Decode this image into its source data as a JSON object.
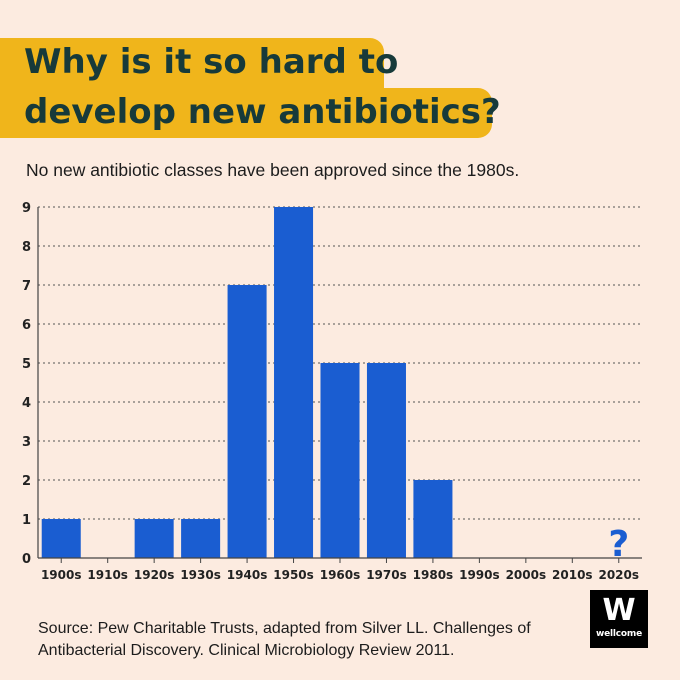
{
  "title_lines": [
    "Why is it so hard to",
    "develop new antibiotics?"
  ],
  "subtitle": "No new antibiotic classes have been approved since the 1980s.",
  "footer": {
    "line1": "Source: Pew Charitable Trusts, adapted from Silver LL. Challenges of",
    "line2": "Antibacterial Discovery. Clinical Microbiology Review 2011."
  },
  "logo": {
    "mark": "W",
    "word": "wellcome"
  },
  "colors": {
    "background": "#fcebe0",
    "title_band": "#f0b51b",
    "title_text": "#173a3a",
    "bar": "#1a5dd1",
    "question_mark": "#1a5dd1"
  },
  "chart_data": {
    "type": "bar",
    "title": "",
    "xlabel": "",
    "ylabel": "",
    "categories": [
      "1900s",
      "1910s",
      "1920s",
      "1930s",
      "1940s",
      "1950s",
      "1960s",
      "1970s",
      "1980s",
      "1990s",
      "2000s",
      "2010s",
      "2020s"
    ],
    "values": [
      1,
      0,
      1,
      1,
      7,
      9,
      5,
      5,
      2,
      0,
      0,
      0,
      0
    ],
    "ylim": [
      0,
      9
    ],
    "yticks": [
      0,
      1,
      2,
      3,
      4,
      5,
      6,
      7,
      8,
      9
    ],
    "grid": "horizontal dotted",
    "annotations": [
      {
        "category": "2020s",
        "text": "?"
      }
    ]
  }
}
